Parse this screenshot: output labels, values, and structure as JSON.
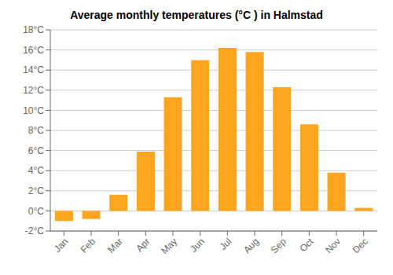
{
  "chart_data": {
    "type": "bar",
    "title": "Average monthly temperatures (°C ) in Halmstad",
    "categories": [
      "Jan",
      "Feb",
      "Mar",
      "Apr",
      "May",
      "Jun",
      "Jul",
      "Aug",
      "Sep",
      "Oct",
      "Nov",
      "Dec"
    ],
    "values": [
      -1.0,
      -0.8,
      1.6,
      5.9,
      11.3,
      15.0,
      16.2,
      15.8,
      12.3,
      8.6,
      3.8,
      0.3
    ],
    "color": "#FFA520",
    "ylim": [
      -2,
      18
    ],
    "yticks": [
      {
        "value": -2,
        "label": "-2°C"
      },
      {
        "value": 0,
        "label": "0°C"
      },
      {
        "value": 2,
        "label": "2°C"
      },
      {
        "value": 4,
        "label": "4°C"
      },
      {
        "value": 6,
        "label": "6°C"
      },
      {
        "value": 8,
        "label": "8°C"
      },
      {
        "value": 10,
        "label": "10°C"
      },
      {
        "value": 12,
        "label": "12°C"
      },
      {
        "value": 14,
        "label": "14°C"
      },
      {
        "value": 16,
        "label": "16°C"
      },
      {
        "value": 18,
        "label": "18°C"
      }
    ],
    "grid": true
  }
}
